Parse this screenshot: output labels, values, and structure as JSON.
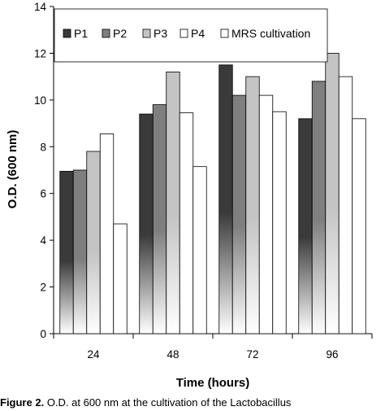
{
  "chart_data": {
    "type": "bar",
    "categories": [
      "24",
      "48",
      "72",
      "96"
    ],
    "series": [
      {
        "name": "P1",
        "values": [
          6.95,
          9.4,
          11.5,
          9.2
        ],
        "color": "#3a3a3a",
        "gradient": true
      },
      {
        "name": "P2",
        "values": [
          7.0,
          9.8,
          10.2,
          10.8
        ],
        "color": "#7f7f7f",
        "gradient": true
      },
      {
        "name": "P3",
        "values": [
          7.8,
          11.2,
          11.0,
          12.0
        ],
        "color": "#c4c4c4",
        "gradient": true
      },
      {
        "name": "P4",
        "values": [
          8.55,
          9.45,
          10.2,
          11.0
        ],
        "color": "#ffffff",
        "gradient": false
      },
      {
        "name": "MRS cultivation",
        "values": [
          4.7,
          7.15,
          9.5,
          9.2
        ],
        "color": "#ffffff",
        "gradient": false
      }
    ],
    "xlabel": "Time (hours)",
    "ylabel": "O.D. (600 nm)",
    "ylim": [
      0,
      14
    ],
    "yticks": [
      "0",
      "2",
      "4",
      "6",
      "8",
      "10",
      "12",
      "14"
    ],
    "legend_position": "top",
    "grid": false
  },
  "caption": {
    "figure_label": "Figure 2.",
    "text": "O.D. at 600 nm at the cultivation of the Lactobacillus"
  }
}
